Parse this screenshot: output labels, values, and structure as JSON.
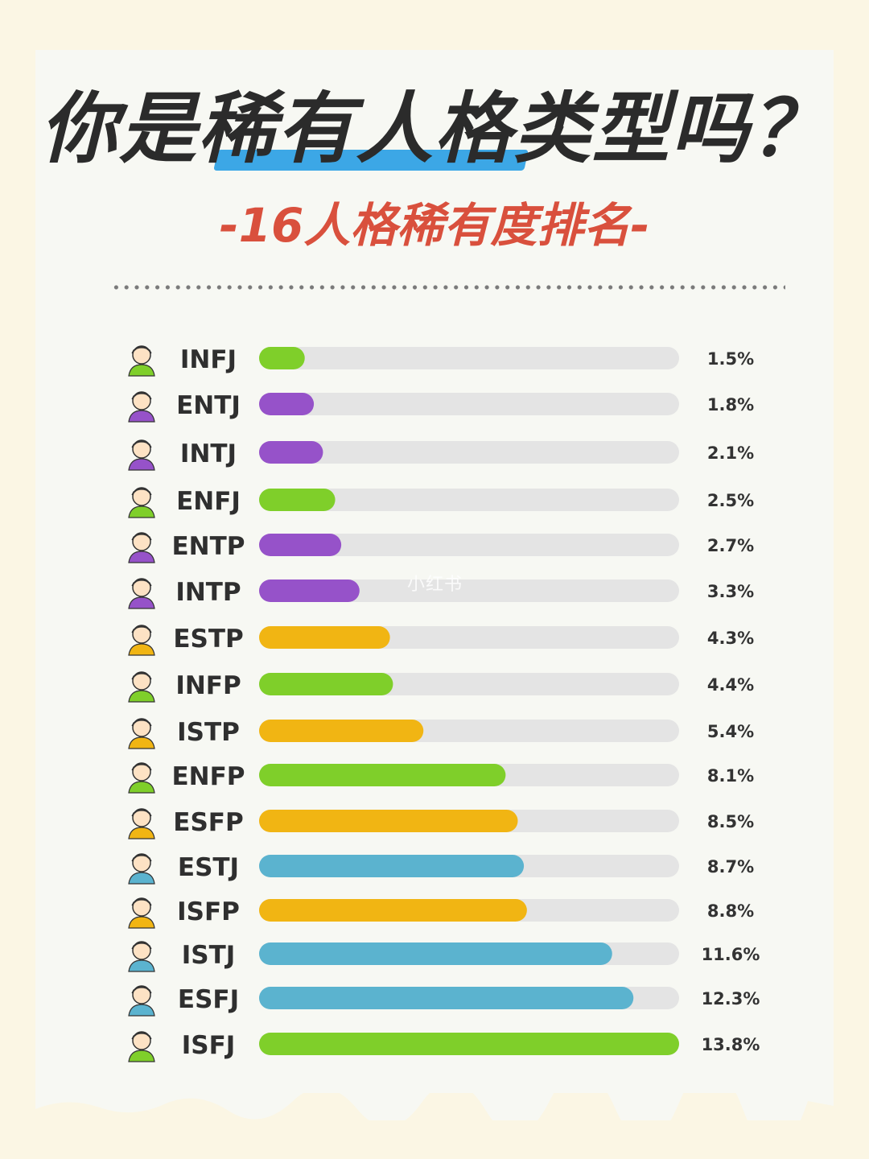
{
  "header": {
    "title": "你是稀有人格类型吗？",
    "subtitle": "-16人格稀有度排名-"
  },
  "watermark": "小红书",
  "colors": {
    "green": "#7fcf2a",
    "purple": "#9652c9",
    "yellow": "#f1b513",
    "blue": "#5bb3cf",
    "track": "#e4e4e4"
  },
  "chart_data": {
    "type": "bar",
    "orientation": "horizontal",
    "categories": [
      "INFJ",
      "ENTJ",
      "INTJ",
      "ENFJ",
      "ENTP",
      "INTP",
      "ESTP",
      "INFP",
      "ISTP",
      "ENFP",
      "ESFP",
      "ESTJ",
      "ISFP",
      "ISTJ",
      "ESFJ",
      "ISFJ"
    ],
    "values": [
      1.5,
      1.8,
      2.1,
      2.5,
      2.7,
      3.3,
      4.3,
      4.4,
      5.4,
      8.1,
      8.5,
      8.7,
      8.8,
      11.6,
      12.3,
      13.8
    ],
    "value_labels": [
      "1.5%",
      "1.8%",
      "2.1%",
      "2.5%",
      "2.7%",
      "3.3%",
      "4.3%",
      "4.4%",
      "5.4%",
      "8.1%",
      "8.5%",
      "8.7%",
      "8.8%",
      "11.6%",
      "12.3%",
      "13.8%"
    ],
    "bar_colors": [
      "green",
      "purple",
      "purple",
      "green",
      "purple",
      "purple",
      "yellow",
      "green",
      "yellow",
      "green",
      "yellow",
      "blue",
      "yellow",
      "blue",
      "blue",
      "green"
    ],
    "unit": "%",
    "xlim": [
      0,
      13.8
    ]
  }
}
